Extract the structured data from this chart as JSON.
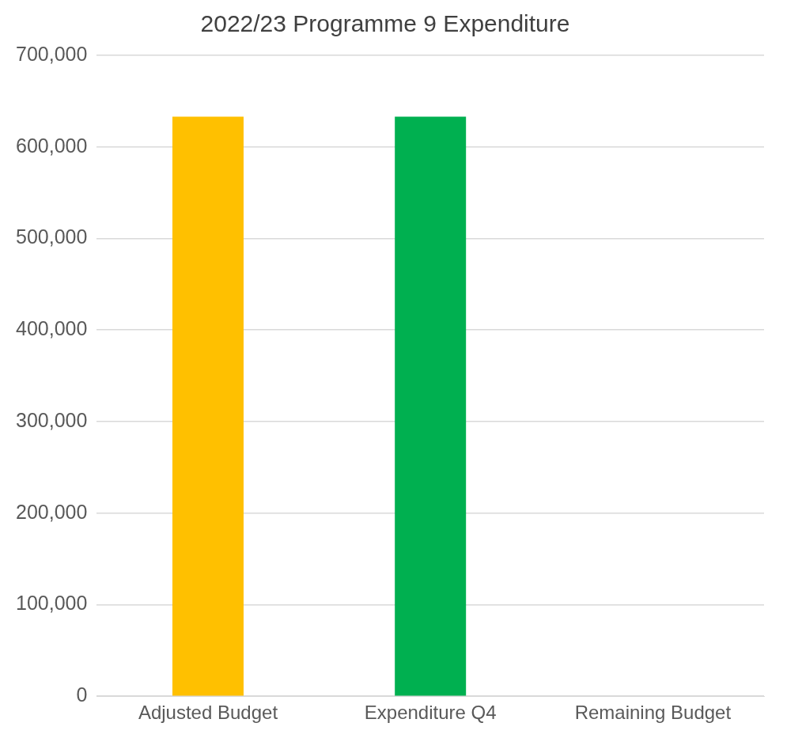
{
  "chart_data": {
    "type": "bar",
    "title": "2022/23 Programme 9 Expenditure",
    "categories": [
      "Adjusted Budget",
      "Expenditure Q4",
      "Remaining Budget"
    ],
    "values": [
      633000,
      633000,
      0
    ],
    "colors": [
      "#ffc000",
      "#00b050",
      "#5b9bd5"
    ],
    "ylim": [
      0,
      700000
    ],
    "yticks": [
      {
        "value": 0,
        "label": "0"
      },
      {
        "value": 100000,
        "label": "100,000"
      },
      {
        "value": 200000,
        "label": "200,000"
      },
      {
        "value": 300000,
        "label": "300,000"
      },
      {
        "value": 400000,
        "label": "400,000"
      },
      {
        "value": 500000,
        "label": "500,000"
      },
      {
        "value": 600000,
        "label": "600,000"
      },
      {
        "value": 700000,
        "label": "700,000"
      }
    ],
    "grid": "y",
    "legend": false
  }
}
